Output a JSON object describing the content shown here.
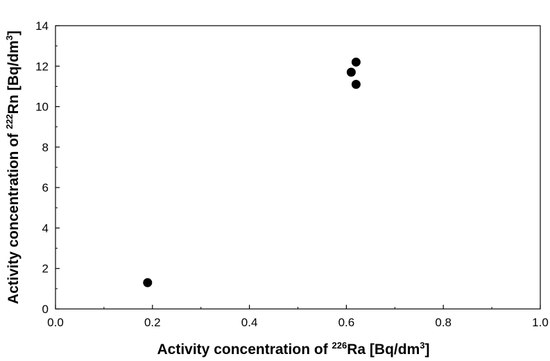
{
  "chart_data": {
    "type": "scatter",
    "x": [
      0.19,
      0.61,
      0.62,
      0.62
    ],
    "y": [
      1.3,
      11.7,
      12.2,
      11.1
    ],
    "xlim": [
      0.0,
      1.0
    ],
    "ylim": [
      0,
      14
    ],
    "x_ticks": [
      "0.0",
      "0.2",
      "0.4",
      "0.6",
      "0.8",
      "1.0"
    ],
    "y_ticks": [
      "0",
      "2",
      "4",
      "6",
      "8",
      "10",
      "12",
      "14"
    ],
    "xlabel": {
      "prefix": "Activity concentration of ",
      "isotope_mass": "226",
      "isotope": "Ra",
      "unit_pre": " [Bq/dm",
      "unit_exp": "3",
      "unit_post": "]"
    },
    "ylabel": {
      "prefix": "Activity concentration of ",
      "isotope_mass": "222",
      "isotope": "Rn",
      "unit_pre": " [Bq/dm",
      "unit_exp": "3",
      "unit_post": "]"
    },
    "grid": false,
    "marker_color": "#000000"
  }
}
